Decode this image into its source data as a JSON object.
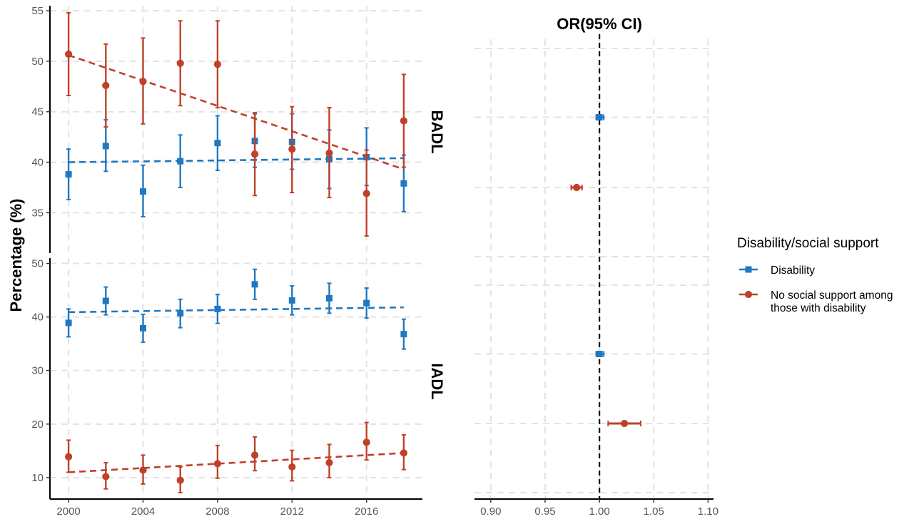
{
  "chart_data": [
    {
      "panel": "BADL",
      "type": "line",
      "ylabel": "Percentage (%)",
      "xlim": [
        1999,
        2019
      ],
      "ylim": [
        31,
        55.5
      ],
      "xticks": [
        2000,
        2004,
        2008,
        2012,
        2016
      ],
      "yticks": [
        35,
        40,
        45,
        50,
        55
      ],
      "grid": true,
      "series": [
        {
          "name": "Disability",
          "color": "#1F78C1",
          "marker": "square",
          "x": [
            2000,
            2002,
            2004,
            2006,
            2008,
            2010,
            2012,
            2014,
            2016,
            2018
          ],
          "values": [
            38.8,
            41.6,
            37.1,
            40.1,
            41.9,
            42.1,
            42.0,
            40.3,
            40.5,
            37.9
          ],
          "lower": [
            36.3,
            39.1,
            34.6,
            37.5,
            39.2,
            39.5,
            39.3,
            37.4,
            37.7,
            35.1
          ],
          "upper": [
            41.3,
            44.2,
            39.7,
            42.7,
            44.6,
            44.8,
            44.8,
            43.2,
            43.4,
            40.7
          ],
          "trend": [
            [
              2000,
              40.0
            ],
            [
              2018,
              40.4
            ]
          ]
        },
        {
          "name": "No social support among those with disability",
          "color": "#C0402A",
          "marker": "circle",
          "x": [
            2000,
            2002,
            2004,
            2006,
            2008,
            2010,
            2012,
            2014,
            2016,
            2018
          ],
          "values": [
            50.7,
            47.6,
            48.0,
            49.8,
            49.7,
            40.8,
            41.3,
            40.9,
            36.9,
            44.1
          ],
          "lower": [
            46.6,
            43.5,
            43.8,
            45.6,
            45.4,
            36.7,
            37.0,
            36.5,
            32.7,
            39.5
          ],
          "upper": [
            54.8,
            51.7,
            52.3,
            54.0,
            54.0,
            44.9,
            45.5,
            45.4,
            41.2,
            48.7
          ],
          "trend": [
            [
              2000,
              50.6
            ],
            [
              2018,
              39.3
            ]
          ]
        }
      ]
    },
    {
      "panel": "IADL",
      "type": "line",
      "ylabel": "Percentage (%)",
      "xlim": [
        1999,
        2019
      ],
      "ylim": [
        6,
        51
      ],
      "xticks": [
        2000,
        2004,
        2008,
        2012,
        2016
      ],
      "xticklabels": [
        "2000",
        "2004",
        "2008",
        "2012",
        "2016"
      ],
      "yticks": [
        10,
        20,
        30,
        40,
        50
      ],
      "grid": true,
      "series": [
        {
          "name": "Disability",
          "color": "#1F78C1",
          "marker": "square",
          "x": [
            2000,
            2002,
            2004,
            2006,
            2008,
            2010,
            2012,
            2014,
            2016,
            2018
          ],
          "values": [
            38.9,
            43.0,
            37.9,
            40.7,
            41.5,
            46.1,
            43.1,
            43.5,
            42.6,
            36.8
          ],
          "lower": [
            36.3,
            40.4,
            35.3,
            38.0,
            38.8,
            43.3,
            40.4,
            40.7,
            39.8,
            34.0
          ],
          "upper": [
            41.5,
            45.6,
            40.5,
            43.3,
            44.2,
            48.9,
            45.8,
            46.3,
            45.4,
            39.6
          ],
          "trend": [
            [
              2000,
              40.9
            ],
            [
              2018,
              41.8
            ]
          ]
        },
        {
          "name": "No social support among those with disability",
          "color": "#C0402A",
          "marker": "circle",
          "x": [
            2000,
            2002,
            2004,
            2006,
            2008,
            2010,
            2012,
            2014,
            2016,
            2018
          ],
          "values": [
            13.9,
            10.2,
            11.4,
            9.5,
            12.6,
            14.2,
            12.0,
            12.8,
            16.6,
            14.6
          ],
          "lower": [
            11.0,
            7.9,
            8.8,
            7.2,
            9.9,
            11.3,
            9.4,
            10.0,
            13.3,
            11.5
          ],
          "upper": [
            17.0,
            12.8,
            14.2,
            12.0,
            16.0,
            17.6,
            15.1,
            16.2,
            20.3,
            18.0
          ],
          "trend": [
            [
              2000,
              11.0
            ],
            [
              2018,
              14.6
            ]
          ]
        }
      ]
    },
    {
      "panel": "OR",
      "type": "scatter",
      "title": "OR(95% CI)",
      "xlim": [
        0.885,
        1.105
      ],
      "xticks": [
        0.9,
        0.95,
        1.0,
        1.05,
        1.1
      ],
      "xticklabels": [
        "0.90",
        "0.95",
        "1.00",
        "1.05",
        "1.10"
      ],
      "reference_line": 1.0,
      "grid": true,
      "rows": [
        {
          "group": "BADL",
          "series": "Disability",
          "color": "#1F78C1",
          "marker": "square",
          "or": 1.0,
          "lower": 0.997,
          "upper": 1.004
        },
        {
          "group": "BADL",
          "series": "No social support among those with disability",
          "color": "#C0402A",
          "marker": "circle",
          "or": 0.979,
          "lower": 0.974,
          "upper": 0.984
        },
        {
          "group": "IADL",
          "series": "Disability",
          "color": "#1F78C1",
          "marker": "square",
          "or": 1.0,
          "lower": 0.997,
          "upper": 1.004
        },
        {
          "group": "IADL",
          "series": "No social support among those with disability",
          "color": "#C0402A",
          "marker": "circle",
          "or": 1.023,
          "lower": 1.008,
          "upper": 1.038
        }
      ]
    }
  ],
  "strips": [
    "BADL",
    "IADL"
  ],
  "ylabel": "Percentage (%)",
  "legend": {
    "title": "Disability/social support",
    "placement": "right",
    "items": [
      {
        "lines": [
          "Disability"
        ],
        "color": "#1F78C1",
        "marker": "square"
      },
      {
        "lines": [
          "No social support among",
          "those with disability"
        ],
        "color": "#C0402A",
        "marker": "circle"
      }
    ]
  }
}
